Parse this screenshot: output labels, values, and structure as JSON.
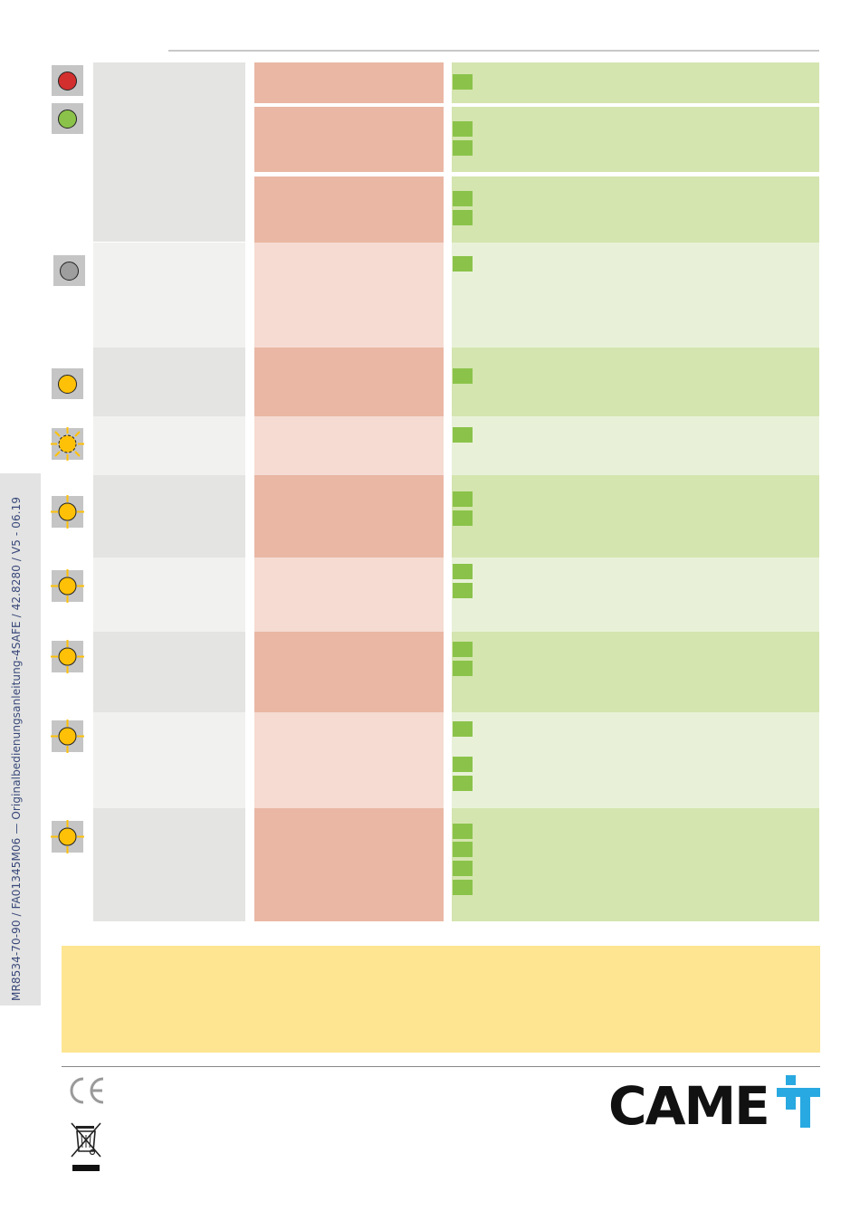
{
  "sidebar": {
    "doc_ref": "MR8534-70-90 / FA01345M06 — Originalbedienungsanleitung-4SAFE / 42.8280 / V5 - 06.19"
  },
  "colors": {
    "bullet": "#8bc34a",
    "led_red": "#d32f2f",
    "led_green": "#8bc34a",
    "led_gray": "#9e9e9e",
    "led_yellow": "#ffc107",
    "notice_bg": "#fde591"
  },
  "leds": [
    {
      "icon": "led-red-icon",
      "state": "on"
    },
    {
      "icon": "led-green-icon",
      "state": "on"
    },
    {
      "icon": "led-off-icon",
      "state": "off"
    },
    {
      "icon": "led-yellow-icon",
      "state": "on"
    },
    {
      "icon": "led-yellow-flashing-icon",
      "state": "flashing"
    },
    {
      "icon": "led-yellow-flashing-icon",
      "state": "flashing"
    },
    {
      "icon": "led-yellow-flashing-icon",
      "state": "flashing"
    },
    {
      "icon": "led-yellow-flashing-icon",
      "state": "flashing"
    },
    {
      "icon": "led-yellow-flashing-icon",
      "state": "flashing"
    },
    {
      "icon": "led-yellow-flashing-icon",
      "state": "flashing"
    }
  ],
  "footer": {
    "ce_mark": "CE",
    "logo": "CAME",
    "icons": [
      "ce-mark-icon",
      "weee-bin-icon",
      "came-logo-icon"
    ]
  }
}
